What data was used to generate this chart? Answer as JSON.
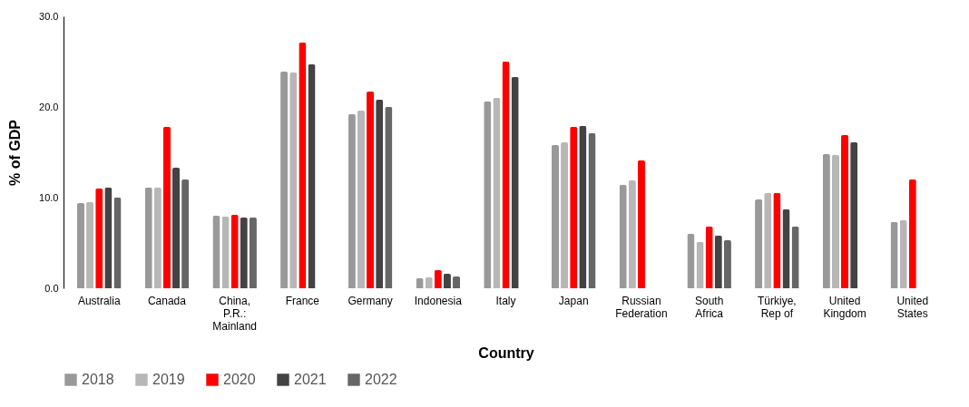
{
  "chart_data": {
    "type": "bar",
    "xlabel": "Country",
    "ylabel": "% of GDP",
    "categories": [
      "Australia",
      "Canada",
      "China, P.R.: Mainland",
      "France",
      "Germany",
      "Indonesia",
      "Italy",
      "Japan",
      "Russian Federation",
      "South Africa",
      "Türkiye, Rep of",
      "United Kingdom",
      "United States"
    ],
    "series": [
      {
        "name": "2018",
        "color": "#999999",
        "values": [
          9.4,
          11.1,
          8.0,
          23.9,
          19.2,
          1.1,
          20.6,
          15.8,
          11.4,
          6.0,
          9.8,
          14.8,
          7.3
        ]
      },
      {
        "name": "2019",
        "color": "#b7b7b7",
        "values": [
          9.5,
          11.1,
          7.9,
          23.8,
          19.6,
          1.2,
          21.0,
          16.1,
          11.9,
          5.1,
          10.5,
          14.7,
          7.5
        ]
      },
      {
        "name": "2020",
        "color": "#ff0000",
        "values": [
          11.0,
          17.8,
          8.1,
          27.1,
          21.7,
          2.0,
          25.0,
          17.8,
          14.1,
          6.8,
          10.5,
          16.9,
          12.0
        ]
      },
      {
        "name": "2021",
        "color": "#434343",
        "values": [
          11.1,
          13.3,
          7.8,
          24.7,
          20.8,
          1.6,
          23.3,
          17.9,
          null,
          5.8,
          8.7,
          16.1,
          null
        ]
      },
      {
        "name": "2022",
        "color": "#666666",
        "values": [
          10.0,
          12.0,
          7.8,
          null,
          20.0,
          1.3,
          null,
          17.1,
          null,
          5.3,
          6.8,
          null,
          null
        ]
      }
    ],
    "ylim": [
      0,
      30
    ],
    "yticks": [
      {
        "value": 0,
        "label": "0.0"
      },
      {
        "value": 10,
        "label": "10.0"
      },
      {
        "value": 20,
        "label": "20.0"
      },
      {
        "value": 30,
        "label": "30.0"
      }
    ],
    "grid": false,
    "legend": "bottom"
  }
}
